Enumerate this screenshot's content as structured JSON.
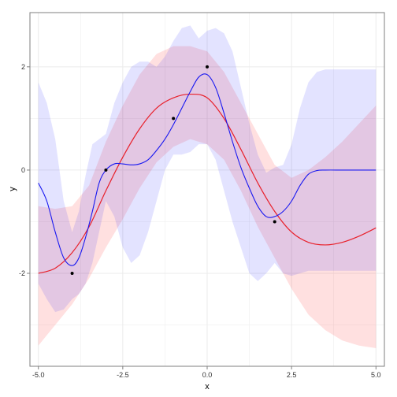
{
  "chart_data": {
    "type": "line",
    "title": "",
    "xlabel": "x",
    "ylabel": "y",
    "xlim": [
      -5.25,
      5.25
    ],
    "ylim": [
      -3.8,
      3.05
    ],
    "x_ticks": [
      {
        "value": -5.0,
        "label": "-5.0"
      },
      {
        "value": -2.5,
        "label": "-2.5"
      },
      {
        "value": 0.0,
        "label": "0.0"
      },
      {
        "value": 2.5,
        "label": "2.5"
      },
      {
        "value": 5.0,
        "label": "5.0"
      }
    ],
    "y_ticks": [
      {
        "value": -2,
        "label": "-2"
      },
      {
        "value": 0,
        "label": "0"
      },
      {
        "value": 2,
        "label": "2"
      }
    ],
    "grid": true,
    "legend": "none",
    "colors": {
      "red_line": "#e8202a",
      "blue_line": "#1818f0",
      "red_band": "#ff0000",
      "blue_band": "#0000ff",
      "grid": "#ebebeb",
      "border": "#7f7f7f"
    },
    "observations": [
      {
        "x": -4,
        "y": -2
      },
      {
        "x": -3,
        "y": 0
      },
      {
        "x": -1,
        "y": 1
      },
      {
        "x": 0,
        "y": 2
      },
      {
        "x": 2,
        "y": -1
      }
    ],
    "series": [
      {
        "style": "red-smooth",
        "x": [
          -5.0,
          -4.5,
          -4.0,
          -3.5,
          -3.0,
          -2.5,
          -2.0,
          -1.5,
          -1.0,
          -0.5,
          0.0,
          0.5,
          1.0,
          1.5,
          2.0,
          2.5,
          3.0,
          3.5,
          4.0,
          4.5,
          5.0
        ],
        "y": [
          -2.0,
          -1.9,
          -1.6,
          -1.1,
          -0.4,
          0.25,
          0.8,
          1.2,
          1.4,
          1.47,
          1.4,
          1.0,
          0.4,
          -0.25,
          -0.8,
          -1.2,
          -1.4,
          -1.45,
          -1.4,
          -1.28,
          -1.12
        ],
        "lower": [
          -3.4,
          -3.0,
          -2.6,
          -2.1,
          -1.5,
          -0.95,
          -0.35,
          0.15,
          0.45,
          0.6,
          0.5,
          0.2,
          -0.4,
          -1.1,
          -1.7,
          -2.3,
          -2.8,
          -3.1,
          -3.3,
          -3.4,
          -3.45
        ],
        "upper": [
          -0.7,
          -0.75,
          -0.7,
          -0.3,
          0.55,
          1.25,
          1.85,
          2.25,
          2.4,
          2.4,
          2.3,
          1.9,
          1.3,
          0.7,
          0.1,
          -0.15,
          0.0,
          0.25,
          0.55,
          0.9,
          1.25
        ]
      },
      {
        "style": "blue-wiggly",
        "x": [
          -5.0,
          -4.75,
          -4.5,
          -4.25,
          -4.0,
          -3.8,
          -3.6,
          -3.4,
          -3.2,
          -3.0,
          -2.75,
          -2.5,
          -2.25,
          -2.0,
          -1.75,
          -1.5,
          -1.25,
          -1.0,
          -0.75,
          -0.5,
          -0.25,
          0.0,
          0.25,
          0.5,
          0.75,
          1.0,
          1.25,
          1.5,
          1.75,
          2.0,
          2.25,
          2.5,
          2.75,
          3.0,
          3.25,
          3.5,
          4.0,
          4.5,
          5.0
        ],
        "y": [
          -0.25,
          -0.6,
          -1.2,
          -1.7,
          -1.85,
          -1.7,
          -1.3,
          -0.8,
          -0.25,
          0.0,
          0.12,
          0.12,
          0.1,
          0.12,
          0.2,
          0.38,
          0.6,
          0.88,
          1.2,
          1.52,
          1.8,
          1.85,
          1.6,
          1.1,
          0.55,
          0.05,
          -0.35,
          -0.7,
          -0.9,
          -0.9,
          -0.8,
          -0.6,
          -0.3,
          -0.08,
          -0.01,
          0.0,
          0.0,
          0.0,
          0.0
        ],
        "lower": [
          -2.2,
          -2.5,
          -2.75,
          -2.7,
          -2.5,
          -2.4,
          -2.2,
          -1.8,
          -1.2,
          -0.6,
          -0.9,
          -1.5,
          -1.8,
          -1.65,
          -1.2,
          -0.6,
          0.0,
          0.3,
          0.3,
          0.35,
          0.5,
          0.5,
          0.2,
          -0.4,
          -1.0,
          -1.5,
          -2.0,
          -2.15,
          -2.0,
          -1.8,
          -2.0,
          -2.05,
          -2.0,
          -1.95,
          -1.95,
          -1.95,
          -1.95,
          -1.95,
          -1.95
        ],
        "upper": [
          1.7,
          1.3,
          0.6,
          -0.6,
          -1.2,
          -0.8,
          -0.1,
          0.5,
          0.6,
          0.7,
          1.3,
          1.7,
          2.0,
          2.1,
          2.1,
          2.0,
          2.2,
          2.5,
          2.75,
          2.8,
          2.55,
          2.7,
          2.75,
          2.65,
          2.3,
          1.6,
          0.9,
          0.3,
          -0.05,
          0.05,
          0.1,
          0.5,
          1.2,
          1.7,
          1.9,
          1.95,
          1.95,
          1.95,
          1.95
        ]
      }
    ]
  }
}
